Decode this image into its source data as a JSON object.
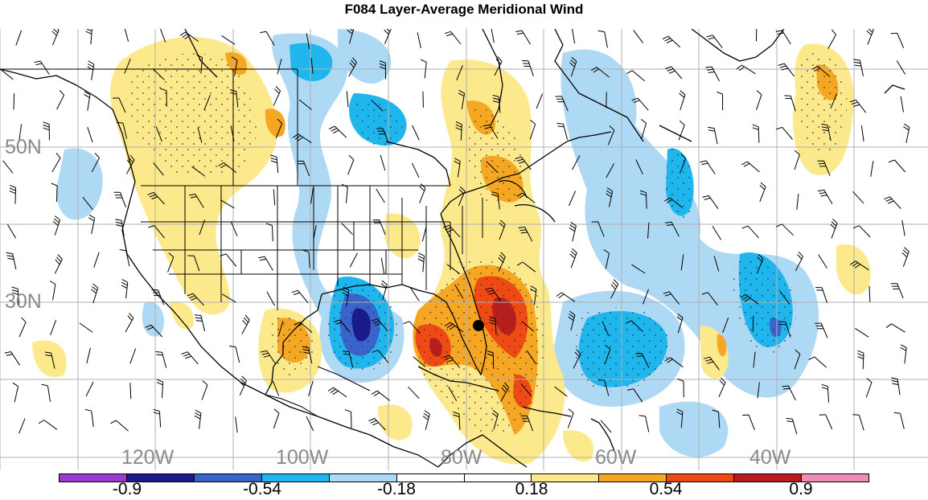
{
  "title": "F084 Layer-Average Meridional Wind",
  "lat_labels": [
    "50N",
    "30N"
  ],
  "lon_labels": [
    "120W",
    "100W",
    "80W",
    "60W",
    "40W"
  ],
  "colorbar": {
    "colors": [
      "#9a3ad0",
      "#1a1a8c",
      "#3a64cc",
      "#1fb6ee",
      "#aed9f4",
      "#ffffff",
      "#ffffff",
      "#fbe98c",
      "#f5a623",
      "#ef4a14",
      "#b81e1e",
      "#f08cb6"
    ],
    "tick_labels": [
      "-0.9",
      "-0.54",
      "-0.18",
      "0.18",
      "0.54",
      "0.9"
    ]
  },
  "map": {
    "symbol": "storm-center-dot",
    "layers": [
      "meridional-wind-shading",
      "significance-stippling",
      "wind-barbs",
      "coastlines",
      "state-borders",
      "graticule"
    ]
  }
}
